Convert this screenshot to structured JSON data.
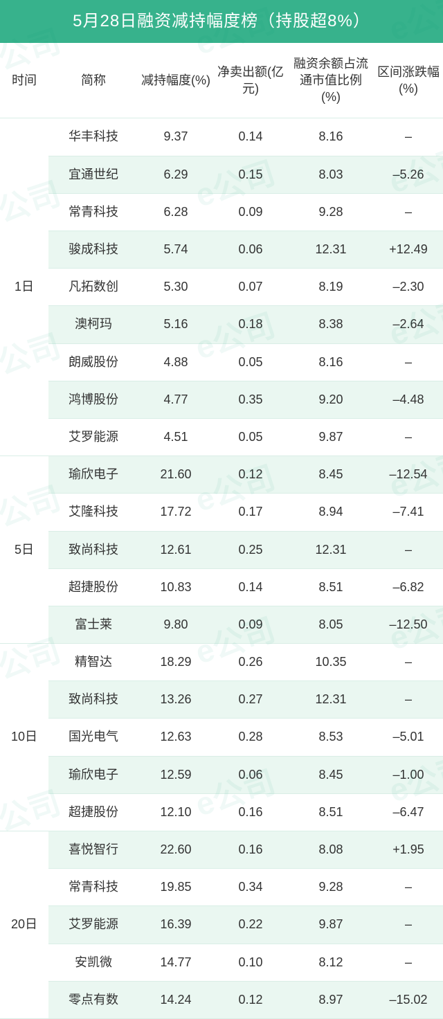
{
  "title": "5月28日融资减持幅度榜（持股超8%）",
  "columns": [
    "时间",
    "简称",
    "减持幅度(%)",
    "净卖出额(亿元)",
    "融资余额占流通市值比例(%)",
    "区间涨跌幅(%)"
  ],
  "colors": {
    "header_bg": "#37b28c",
    "header_fg": "#ffffff",
    "row_even_bg": "#eaf7f1",
    "row_odd_bg": "#ffffff",
    "border": "#d9eee6",
    "text": "#333333",
    "watermark": "rgba(0,150,120,0.06)"
  },
  "font": {
    "title_size_pt": 18,
    "body_size_pt": 13
  },
  "watermark_text": "e公司",
  "groups": [
    {
      "time": "1日",
      "rows": [
        {
          "name": "华丰科技",
          "reduction": "9.37",
          "netsell": "0.14",
          "ratio": "8.16",
          "chg": "–"
        },
        {
          "name": "宜通世纪",
          "reduction": "6.29",
          "netsell": "0.15",
          "ratio": "8.03",
          "chg": "–5.26"
        },
        {
          "name": "常青科技",
          "reduction": "6.28",
          "netsell": "0.09",
          "ratio": "9.28",
          "chg": "–"
        },
        {
          "name": "骏成科技",
          "reduction": "5.74",
          "netsell": "0.06",
          "ratio": "12.31",
          "chg": "+12.49"
        },
        {
          "name": "凡拓数创",
          "reduction": "5.30",
          "netsell": "0.07",
          "ratio": "8.19",
          "chg": "–2.30"
        },
        {
          "name": "澳柯玛",
          "reduction": "5.16",
          "netsell": "0.18",
          "ratio": "8.38",
          "chg": "–2.64"
        },
        {
          "name": "朗威股份",
          "reduction": "4.88",
          "netsell": "0.05",
          "ratio": "8.16",
          "chg": "–"
        },
        {
          "name": "鸿博股份",
          "reduction": "4.77",
          "netsell": "0.35",
          "ratio": "9.20",
          "chg": "–4.48"
        },
        {
          "name": "艾罗能源",
          "reduction": "4.51",
          "netsell": "0.05",
          "ratio": "9.87",
          "chg": "–"
        }
      ]
    },
    {
      "time": "5日",
      "rows": [
        {
          "name": "瑜欣电子",
          "reduction": "21.60",
          "netsell": "0.12",
          "ratio": "8.45",
          "chg": "–12.54"
        },
        {
          "name": "艾隆科技",
          "reduction": "17.72",
          "netsell": "0.17",
          "ratio": "8.94",
          "chg": "–7.41"
        },
        {
          "name": "致尚科技",
          "reduction": "12.61",
          "netsell": "0.25",
          "ratio": "12.31",
          "chg": "–"
        },
        {
          "name": "超捷股份",
          "reduction": "10.83",
          "netsell": "0.14",
          "ratio": "8.51",
          "chg": "–6.82"
        },
        {
          "name": "富士莱",
          "reduction": "9.80",
          "netsell": "0.09",
          "ratio": "8.05",
          "chg": "–12.50"
        }
      ]
    },
    {
      "time": "10日",
      "rows": [
        {
          "name": "精智达",
          "reduction": "18.29",
          "netsell": "0.26",
          "ratio": "10.35",
          "chg": "–"
        },
        {
          "name": "致尚科技",
          "reduction": "13.26",
          "netsell": "0.27",
          "ratio": "12.31",
          "chg": "–"
        },
        {
          "name": "国光电气",
          "reduction": "12.63",
          "netsell": "0.28",
          "ratio": "8.53",
          "chg": "–5.01"
        },
        {
          "name": "瑜欣电子",
          "reduction": "12.59",
          "netsell": "0.06",
          "ratio": "8.45",
          "chg": "–1.00"
        },
        {
          "name": "超捷股份",
          "reduction": "12.10",
          "netsell": "0.16",
          "ratio": "8.51",
          "chg": "–6.47"
        }
      ]
    },
    {
      "time": "20日",
      "rows": [
        {
          "name": "喜悦智行",
          "reduction": "22.60",
          "netsell": "0.16",
          "ratio": "8.08",
          "chg": "+1.95"
        },
        {
          "name": "常青科技",
          "reduction": "19.85",
          "netsell": "0.34",
          "ratio": "9.28",
          "chg": "–"
        },
        {
          "name": "艾罗能源",
          "reduction": "16.39",
          "netsell": "0.22",
          "ratio": "9.87",
          "chg": "–"
        },
        {
          "name": "安凯微",
          "reduction": "14.77",
          "netsell": "0.10",
          "ratio": "8.12",
          "chg": "–"
        },
        {
          "name": "零点有数",
          "reduction": "14.24",
          "netsell": "0.12",
          "ratio": "8.97",
          "chg": "–15.02"
        }
      ]
    }
  ]
}
